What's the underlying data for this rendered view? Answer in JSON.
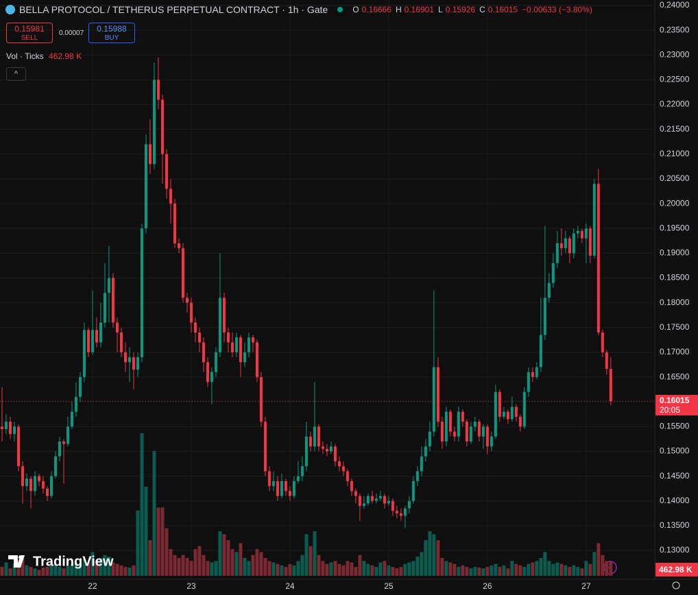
{
  "chart_data": {
    "type": "candlestick",
    "title": "BELLA PROTOCOL / TETHERUS PERPETUAL CONTRACT · 1h · Gate",
    "ohlc_letters": [
      "O",
      "H",
      "L",
      "C"
    ],
    "change": "−0.00633 (−3.80%)",
    "sell": {
      "price": 0.15981,
      "label": "SELL"
    },
    "spread": 7e-05,
    "buy": {
      "price": 0.15988,
      "label": "BUY"
    },
    "volume_title": "Vol · Ticks",
    "last_volume_label": "462.98 K",
    "last_price_time": "20:05",
    "logo": "TradingView",
    "up_color": "#089981",
    "down_color": "#f23645",
    "volume_up_color": "#0a5c50",
    "volume_down_color": "#7a2a30",
    "grid": true,
    "xlim": [
      -0.5,
      158.7
    ],
    "xticks": [
      {
        "value": 22,
        "label": "22"
      },
      {
        "value": 46,
        "label": "23"
      },
      {
        "value": 70,
        "label": "24"
      },
      {
        "value": 94,
        "label": "25"
      },
      {
        "value": 118,
        "label": "26"
      },
      {
        "value": 142,
        "label": "27"
      }
    ],
    "ylim": [
      0.1242,
      0.2411
    ],
    "yticks": [
      {
        "value": 0.13,
        "label": "0.13000"
      },
      {
        "value": 0.135,
        "label": "0.13500"
      },
      {
        "value": 0.14,
        "label": "0.14000"
      },
      {
        "value": 0.145,
        "label": "0.14500"
      },
      {
        "value": 0.15,
        "label": "0.15000"
      },
      {
        "value": 0.155,
        "label": "0.15500"
      },
      {
        "value": 0.16,
        "label": "0.16000"
      },
      {
        "value": 0.165,
        "label": "0.16500"
      },
      {
        "value": 0.17,
        "label": "0.17000"
      },
      {
        "value": 0.175,
        "label": "0.17500"
      },
      {
        "value": 0.18,
        "label": "0.18000"
      },
      {
        "value": 0.185,
        "label": "0.18500"
      },
      {
        "value": 0.19,
        "label": "0.19000"
      },
      {
        "value": 0.195,
        "label": "0.19500"
      },
      {
        "value": 0.2,
        "label": "0.20000"
      },
      {
        "value": 0.205,
        "label": "0.20500"
      },
      {
        "value": 0.21,
        "label": "0.21000"
      },
      {
        "value": 0.215,
        "label": "0.21500"
      },
      {
        "value": 0.22,
        "label": "0.22000"
      },
      {
        "value": 0.225,
        "label": "0.22500"
      },
      {
        "value": 0.23,
        "label": "0.23000"
      },
      {
        "value": 0.235,
        "label": "0.23500"
      },
      {
        "value": 0.24,
        "label": "0.24000"
      }
    ],
    "volume_lim": [
      0,
      9600000
    ],
    "open": [
      0.155,
      0.1545,
      0.156,
      0.1535,
      0.155,
      0.147,
      0.143,
      0.1445,
      0.142,
      0.145,
      0.144,
      0.1425,
      0.141,
      0.145,
      0.149,
      0.152,
      0.1515,
      0.155,
      0.158,
      0.161,
      0.165,
      0.1745,
      0.17,
      0.1745,
      0.172,
      0.176,
      0.182,
      0.185,
      0.176,
      0.174,
      0.17,
      0.168,
      0.169,
      0.1665,
      0.169,
      0.195,
      0.212,
      0.208,
      0.225,
      0.221,
      0.21,
      0.203,
      0.2,
      0.192,
      0.191,
      0.181,
      0.18,
      0.176,
      0.174,
      0.172,
      0.168,
      0.164,
      0.166,
      0.17,
      0.181,
      0.174,
      0.172,
      0.17,
      0.173,
      0.168,
      0.17,
      0.173,
      0.172,
      0.165,
      0.156,
      0.146,
      0.143,
      0.144,
      0.141,
      0.144,
      0.142,
      0.141,
      0.144,
      0.145,
      0.147,
      0.153,
      0.151,
      0.155,
      0.151,
      0.1505,
      0.15,
      0.151,
      0.148,
      0.147,
      0.146,
      0.144,
      0.142,
      0.141,
      0.139,
      0.1395,
      0.141,
      0.14,
      0.1405,
      0.141,
      0.1395,
      0.14,
      0.138,
      0.1375,
      0.137,
      0.1385,
      0.14,
      0.144,
      0.146,
      0.149,
      0.151,
      0.154,
      0.167,
      0.156,
      0.152,
      0.158,
      0.154,
      0.153,
      0.158,
      0.156,
      0.152,
      0.155,
      0.156,
      0.153,
      0.155,
      0.151,
      0.153,
      0.162,
      0.157,
      0.158,
      0.1565,
      0.159,
      0.157,
      0.155,
      0.162,
      0.166,
      0.165,
      0.167,
      0.1735,
      0.181,
      0.184,
      0.188,
      0.192,
      0.191,
      0.193,
      0.19,
      0.194,
      0.1945,
      0.193,
      0.195,
      0.1895,
      0.204,
      0.174,
      0.17,
      0.16666
    ],
    "high": [
      0.163,
      0.1575,
      0.157,
      0.156,
      0.1555,
      0.148,
      0.1455,
      0.145,
      0.146,
      0.1455,
      0.145,
      0.143,
      0.146,
      0.15,
      0.153,
      0.1525,
      0.157,
      0.16,
      0.164,
      0.166,
      0.176,
      0.175,
      0.1825,
      0.177,
      0.18,
      0.188,
      0.1915,
      0.186,
      0.177,
      0.175,
      0.172,
      0.171,
      0.17,
      0.17,
      0.196,
      0.214,
      0.217,
      0.2285,
      0.2295,
      0.222,
      0.211,
      0.205,
      0.201,
      0.193,
      0.192,
      0.182,
      0.181,
      0.177,
      0.175,
      0.173,
      0.169,
      0.167,
      0.171,
      0.19,
      0.182,
      0.175,
      0.174,
      0.174,
      0.1735,
      0.172,
      0.174,
      0.1735,
      0.1725,
      0.166,
      0.157,
      0.147,
      0.146,
      0.145,
      0.1455,
      0.1445,
      0.143,
      0.145,
      0.148,
      0.149,
      0.156,
      0.154,
      0.164,
      0.1555,
      0.152,
      0.1515,
      0.152,
      0.1515,
      0.149,
      0.148,
      0.1465,
      0.1445,
      0.1425,
      0.1415,
      0.141,
      0.1415,
      0.142,
      0.1415,
      0.142,
      0.1415,
      0.141,
      0.1405,
      0.139,
      0.1385,
      0.139,
      0.141,
      0.145,
      0.147,
      0.151,
      0.1525,
      0.156,
      0.1825,
      0.169,
      0.157,
      0.159,
      0.1585,
      0.155,
      0.159,
      0.1585,
      0.1565,
      0.156,
      0.157,
      0.1565,
      0.1555,
      0.1555,
      0.154,
      0.1635,
      0.1625,
      0.159,
      0.1585,
      0.161,
      0.1595,
      0.1575,
      0.163,
      0.167,
      0.167,
      0.168,
      0.181,
      0.1955,
      0.186,
      0.19,
      0.1945,
      0.195,
      0.1945,
      0.1935,
      0.195,
      0.1955,
      0.195,
      0.196,
      0.1955,
      0.205,
      0.207,
      0.1745,
      0.1705,
      0.16901
    ],
    "low": [
      0.152,
      0.1535,
      0.1525,
      0.152,
      0.146,
      0.1395,
      0.142,
      0.1385,
      0.141,
      0.143,
      0.1415,
      0.14,
      0.1405,
      0.1445,
      0.148,
      0.1435,
      0.151,
      0.1545,
      0.157,
      0.16,
      0.164,
      0.169,
      0.1695,
      0.171,
      0.171,
      0.175,
      0.176,
      0.175,
      0.17,
      0.169,
      0.166,
      0.164,
      0.1625,
      0.165,
      0.168,
      0.194,
      0.206,
      0.207,
      0.219,
      0.204,
      0.201,
      0.196,
      0.191,
      0.19,
      0.18,
      0.178,
      0.174,
      0.172,
      0.17,
      0.166,
      0.163,
      0.1595,
      0.165,
      0.169,
      0.172,
      0.17,
      0.169,
      0.169,
      0.165,
      0.167,
      0.169,
      0.17,
      0.164,
      0.155,
      0.145,
      0.142,
      0.142,
      0.14,
      0.1405,
      0.141,
      0.14,
      0.1405,
      0.1435,
      0.144,
      0.146,
      0.15,
      0.15,
      0.15,
      0.1495,
      0.149,
      0.1495,
      0.147,
      0.146,
      0.145,
      0.143,
      0.141,
      0.1395,
      0.136,
      0.1385,
      0.139,
      0.1395,
      0.1395,
      0.14,
      0.1385,
      0.139,
      0.137,
      0.1365,
      0.136,
      0.1345,
      0.1375,
      0.1395,
      0.143,
      0.145,
      0.148,
      0.15,
      0.153,
      0.155,
      0.1505,
      0.151,
      0.153,
      0.152,
      0.152,
      0.155,
      0.151,
      0.1515,
      0.154,
      0.152,
      0.1505,
      0.1495,
      0.15,
      0.1525,
      0.156,
      0.1565,
      0.1555,
      0.156,
      0.156,
      0.154,
      0.1545,
      0.161,
      0.164,
      0.1645,
      0.166,
      0.1725,
      0.18,
      0.183,
      0.187,
      0.1895,
      0.19,
      0.188,
      0.189,
      0.193,
      0.192,
      0.188,
      0.188,
      0.189,
      0.1735,
      0.169,
      0.1655,
      0.15926
    ],
    "close": [
      0.1545,
      0.156,
      0.1535,
      0.155,
      0.147,
      0.143,
      0.1445,
      0.142,
      0.145,
      0.144,
      0.1425,
      0.141,
      0.145,
      0.149,
      0.152,
      0.1515,
      0.155,
      0.158,
      0.161,
      0.165,
      0.1745,
      0.17,
      0.1745,
      0.172,
      0.176,
      0.182,
      0.185,
      0.176,
      0.174,
      0.17,
      0.168,
      0.169,
      0.1665,
      0.169,
      0.195,
      0.212,
      0.208,
      0.225,
      0.221,
      0.21,
      0.203,
      0.2,
      0.192,
      0.191,
      0.181,
      0.18,
      0.176,
      0.174,
      0.172,
      0.168,
      0.164,
      0.166,
      0.17,
      0.181,
      0.174,
      0.172,
      0.17,
      0.173,
      0.168,
      0.17,
      0.173,
      0.172,
      0.165,
      0.156,
      0.146,
      0.143,
      0.144,
      0.141,
      0.144,
      0.142,
      0.141,
      0.144,
      0.145,
      0.147,
      0.153,
      0.151,
      0.155,
      0.151,
      0.1505,
      0.15,
      0.151,
      0.148,
      0.147,
      0.146,
      0.144,
      0.142,
      0.141,
      0.139,
      0.1395,
      0.141,
      0.14,
      0.1405,
      0.141,
      0.1395,
      0.14,
      0.138,
      0.1375,
      0.137,
      0.1385,
      0.14,
      0.144,
      0.146,
      0.149,
      0.151,
      0.154,
      0.167,
      0.156,
      0.152,
      0.158,
      0.154,
      0.153,
      0.158,
      0.156,
      0.152,
      0.155,
      0.156,
      0.153,
      0.155,
      0.151,
      0.153,
      0.162,
      0.157,
      0.158,
      0.1565,
      0.159,
      0.157,
      0.155,
      0.162,
      0.166,
      0.165,
      0.167,
      0.1735,
      0.181,
      0.184,
      0.188,
      0.192,
      0.191,
      0.193,
      0.19,
      0.194,
      0.1945,
      0.193,
      0.195,
      0.1895,
      0.204,
      0.174,
      0.17,
      0.16666,
      0.16015
    ],
    "volume": [
      300000,
      450000,
      250000,
      400000,
      550000,
      600000,
      350000,
      300000,
      250000,
      200000,
      280000,
      300000,
      350000,
      380000,
      300000,
      250000,
      320000,
      400000,
      450000,
      380000,
      550000,
      450000,
      800000,
      500000,
      600000,
      700000,
      650000,
      450000,
      400000,
      350000,
      300000,
      280000,
      350000,
      2200000,
      4800000,
      3000000,
      1200000,
      4200000,
      2300000,
      2300000,
      1600000,
      900000,
      700000,
      600000,
      700000,
      600000,
      500000,
      900000,
      1000000,
      700000,
      500000,
      450000,
      500000,
      1500000,
      1400000,
      1200000,
      900000,
      800000,
      1100000,
      600000,
      500000,
      700000,
      900000,
      800000,
      600000,
      500000,
      450000,
      400000,
      350000,
      300000,
      400000,
      350000,
      500000,
      700000,
      1400000,
      1000000,
      1500000,
      700000,
      500000,
      400000,
      450000,
      500000,
      400000,
      350000,
      500000,
      450000,
      300000,
      700000,
      500000,
      400000,
      350000,
      300000,
      450000,
      500000,
      350000,
      300000,
      250000,
      300000,
      400000,
      450000,
      500000,
      650000,
      800000,
      1200000,
      1500000,
      1400000,
      1200000,
      600000,
      500000,
      450000,
      400000,
      300000,
      350000,
      300000,
      250000,
      300000,
      280000,
      250000,
      300000,
      350000,
      400000,
      300000,
      350000,
      250000,
      500000,
      400000,
      350000,
      300000,
      400000,
      450000,
      500000,
      600000,
      800000,
      500000,
      400000,
      450000,
      400000,
      350000,
      300000,
      350000,
      300000,
      250000,
      500000,
      400000,
      800000,
      1100000,
      700000,
      500000,
      462980
    ]
  }
}
